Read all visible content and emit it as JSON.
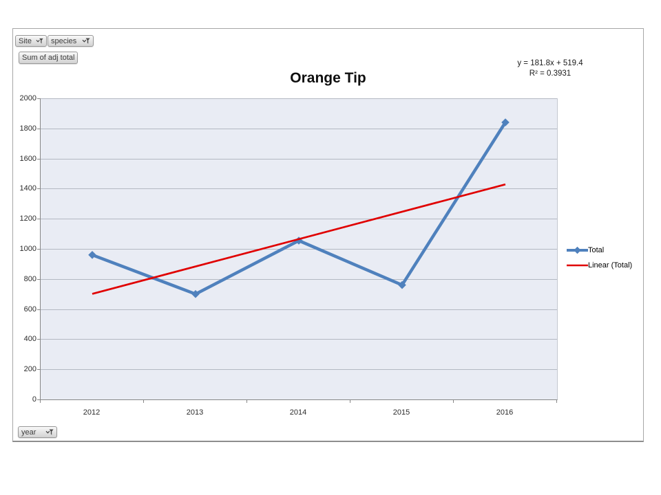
{
  "pivot_buttons": {
    "site_label": "Site",
    "species_label": "species",
    "values_label": "Sum of adj total",
    "axis_label": "year"
  },
  "annotation": {
    "equation": "y = 181.8x + 519.4",
    "r_squared": "R² = 0.3931"
  },
  "legend": {
    "position": "right",
    "items": [
      {
        "label": "Total"
      },
      {
        "label": "Linear (Total)"
      }
    ]
  },
  "colors": {
    "series_blue": "#4f81bd",
    "trend_red": "#e00000",
    "plot_bg": "#e9ecf4",
    "gridline": "#b3b8c2",
    "axis": "#868686"
  },
  "chart_data": {
    "type": "line",
    "title": "Orange Tip",
    "categories": [
      "2012",
      "2013",
      "2014",
      "2015",
      "2016"
    ],
    "series": [
      {
        "name": "Total",
        "values": [
          960,
          700,
          1055,
          760,
          1840
        ],
        "color": "#4f81bd",
        "marker": "diamond"
      }
    ],
    "trendline": {
      "name": "Linear (Total)",
      "kind": "linear",
      "slope": 181.8,
      "intercept": 519.4,
      "equation": "y = 181.8x + 519.4",
      "r2": 0.3931,
      "color": "#e00000"
    },
    "xlabel": "",
    "ylabel": "",
    "ylim": [
      0,
      2000
    ],
    "yticks": [
      0,
      200,
      400,
      600,
      800,
      1000,
      1200,
      1400,
      1600,
      1800,
      2000
    ],
    "grid": true,
    "legend_position": "right",
    "plot_bg": "#e9ecf4",
    "gridline_color": "#b3b8c2",
    "axis_color": "#868686"
  }
}
